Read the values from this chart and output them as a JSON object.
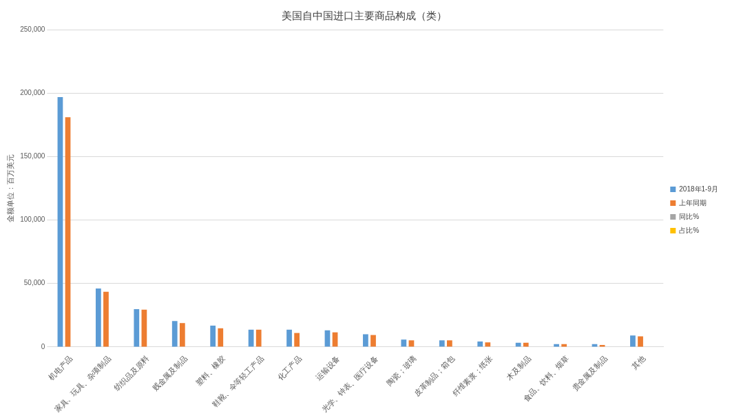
{
  "chart_data": {
    "type": "bar",
    "title": "美国自中国进口主要商品构成（类）",
    "ylabel": "金额单位：百万美元",
    "categories": [
      "机电产品",
      "家具、玩具、杂项制品",
      "纺织品及原料",
      "贱金属及制品",
      "塑料、橡胶",
      "鞋靴、伞等轻工产品",
      "化工产品",
      "运输设备",
      "光学、钟表、医疗设备",
      "陶瓷；玻璃",
      "皮革制品；箱包",
      "纤维素浆；纸张",
      "木及制品",
      "食品、饮料、烟草",
      "贵金属及制品",
      "其他"
    ],
    "series": [
      {
        "name": "2018年1-9月",
        "color": "#5b9bd5",
        "values": [
          196800,
          46000,
          29800,
          20400,
          16800,
          13600,
          13600,
          13100,
          10000,
          5800,
          5200,
          4300,
          3300,
          2200,
          2200,
          9000
        ]
      },
      {
        "name": "上年同期",
        "color": "#ed7d31",
        "values": [
          181000,
          43500,
          29300,
          18800,
          14700,
          13600,
          11000,
          11500,
          9400,
          5200,
          5200,
          3600,
          3300,
          2200,
          1500,
          8400
        ]
      },
      {
        "name": "同比%",
        "color": "#a5a5a5",
        "values": [
          null,
          null,
          null,
          null,
          null,
          null,
          null,
          null,
          null,
          null,
          null,
          null,
          null,
          null,
          null,
          null
        ]
      },
      {
        "name": "占比%",
        "color": "#ffc000",
        "values": [
          null,
          null,
          null,
          null,
          null,
          null,
          null,
          null,
          null,
          null,
          null,
          null,
          null,
          null,
          null,
          null
        ]
      }
    ],
    "ylim": [
      0,
      250000
    ],
    "yticks": [
      0,
      {
        "value": 50000,
        "label": "50,000"
      },
      {
        "value": 100000,
        "label": "100,000"
      },
      {
        "value": 150000,
        "label": "150,000"
      },
      {
        "value": 200000,
        "label": "200,000"
      },
      {
        "value": 250000,
        "label": "250,000"
      }
    ],
    "grid": "y",
    "legend": "right"
  }
}
